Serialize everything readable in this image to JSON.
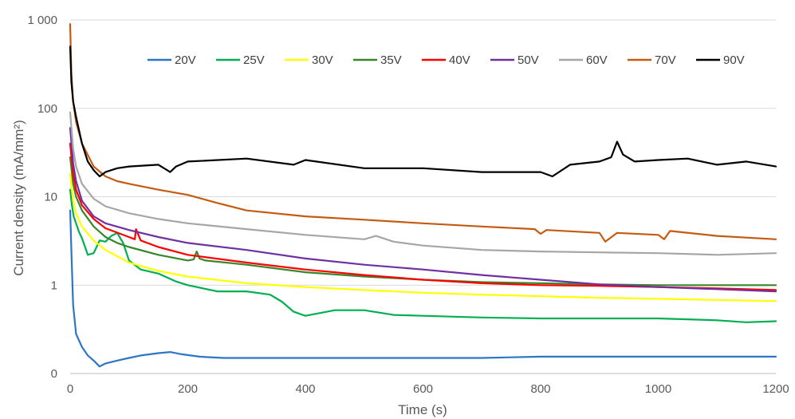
{
  "chart_data": {
    "type": "line",
    "title": "",
    "xlabel": "Time (s)",
    "ylabel": "Current density (mA/mm²)",
    "xlim": [
      0,
      1200
    ],
    "ylim": [
      0.1,
      1000
    ],
    "yscale": "log",
    "x_ticks": [
      0,
      200,
      400,
      600,
      800,
      1000,
      1200
    ],
    "x_tick_labels": [
      "0",
      "200",
      "400",
      "600",
      "800",
      "1000",
      "1200"
    ],
    "y_ticks": [
      0.1,
      1,
      10,
      100,
      1000
    ],
    "y_tick_labels": [
      "0",
      "1",
      "10",
      "100",
      "1 000"
    ],
    "grid": "horizontal",
    "legend_position": "top",
    "series": [
      {
        "name": "20V",
        "color": "#2e75c6",
        "x": [
          0,
          2,
          5,
          10,
          20,
          30,
          40,
          50,
          60,
          80,
          100,
          120,
          150,
          170,
          190,
          220,
          260,
          300,
          400,
          500,
          600,
          700,
          800,
          900,
          1000,
          1100,
          1200
        ],
        "y": [
          7,
          2.5,
          0.6,
          0.28,
          0.2,
          0.16,
          0.14,
          0.12,
          0.13,
          0.14,
          0.15,
          0.16,
          0.17,
          0.175,
          0.165,
          0.155,
          0.15,
          0.15,
          0.15,
          0.15,
          0.15,
          0.15,
          0.155,
          0.155,
          0.155,
          0.155,
          0.155
        ]
      },
      {
        "name": "25V",
        "color": "#00b050",
        "x": [
          0,
          3,
          6,
          10,
          15,
          20,
          30,
          40,
          50,
          60,
          70,
          80,
          90,
          100,
          120,
          150,
          180,
          200,
          250,
          300,
          340,
          360,
          380,
          400,
          450,
          500,
          550,
          600,
          700,
          800,
          900,
          1000,
          1100,
          1150,
          1200
        ],
        "y": [
          12,
          8,
          6,
          5,
          4,
          3.4,
          2.2,
          2.3,
          3.2,
          3.1,
          3.6,
          3.9,
          3.0,
          1.9,
          1.5,
          1.35,
          1.1,
          1.0,
          0.85,
          0.85,
          0.78,
          0.65,
          0.5,
          0.45,
          0.52,
          0.52,
          0.46,
          0.45,
          0.43,
          0.42,
          0.42,
          0.42,
          0.4,
          0.38,
          0.39
        ]
      },
      {
        "name": "30V",
        "color": "#ffff00",
        "x": [
          0,
          5,
          10,
          20,
          40,
          60,
          100,
          150,
          200,
          300,
          400,
          500,
          600,
          700,
          800,
          900,
          1000,
          1100,
          1200
        ],
        "y": [
          18,
          9,
          6.5,
          4.6,
          3.2,
          2.5,
          1.8,
          1.45,
          1.25,
          1.05,
          0.95,
          0.88,
          0.82,
          0.78,
          0.75,
          0.72,
          0.7,
          0.68,
          0.66
        ]
      },
      {
        "name": "35V",
        "color": "#38862a",
        "x": [
          0,
          5,
          10,
          20,
          40,
          60,
          80,
          100,
          150,
          200,
          210,
          215,
          220,
          230,
          300,
          400,
          500,
          600,
          700,
          800,
          900,
          1000,
          1100,
          1200
        ],
        "y": [
          28,
          14,
          10,
          7,
          4.6,
          3.5,
          3.0,
          2.7,
          2.2,
          1.9,
          1.95,
          2.4,
          2.0,
          1.9,
          1.7,
          1.4,
          1.25,
          1.15,
          1.08,
          1.05,
          1.02,
          1.0,
          1.0,
          1.0
        ]
      },
      {
        "name": "40V",
        "color": "#ff0000",
        "x": [
          0,
          5,
          10,
          20,
          40,
          60,
          100,
          110,
          112,
          120,
          150,
          200,
          300,
          400,
          500,
          600,
          700,
          800,
          900,
          1000,
          1100,
          1200
        ],
        "y": [
          40,
          18,
          12,
          8,
          5.6,
          4.4,
          3.5,
          3.3,
          4.3,
          3.2,
          2.7,
          2.2,
          1.8,
          1.5,
          1.3,
          1.15,
          1.05,
          1.0,
          0.98,
          0.95,
          0.92,
          0.88
        ]
      },
      {
        "name": "50V",
        "color": "#7030a0",
        "x": [
          0,
          5,
          10,
          20,
          40,
          60,
          100,
          150,
          200,
          300,
          400,
          500,
          600,
          700,
          800,
          900,
          1000,
          1100,
          1200
        ],
        "y": [
          60,
          24,
          15,
          9,
          6,
          5,
          4.2,
          3.5,
          3.0,
          2.5,
          2.0,
          1.7,
          1.5,
          1.3,
          1.15,
          1.02,
          0.95,
          0.9,
          0.85
        ]
      },
      {
        "name": "60V",
        "color": "#a6a6a6",
        "x": [
          0,
          5,
          10,
          20,
          40,
          60,
          100,
          150,
          200,
          300,
          400,
          500,
          520,
          550,
          600,
          700,
          800,
          900,
          1000,
          1100,
          1200
        ],
        "y": [
          90,
          35,
          22,
          14,
          9.5,
          7.8,
          6.5,
          5.6,
          5.0,
          4.3,
          3.7,
          3.3,
          3.6,
          3.1,
          2.8,
          2.5,
          2.4,
          2.35,
          2.3,
          2.2,
          2.3
        ]
      },
      {
        "name": "70V",
        "color": "#c55a11",
        "x": [
          0,
          2,
          5,
          10,
          20,
          40,
          60,
          80,
          100,
          150,
          200,
          250,
          300,
          400,
          500,
          600,
          700,
          790,
          800,
          810,
          900,
          910,
          930,
          1000,
          1010,
          1020,
          1100,
          1200
        ],
        "y": [
          900,
          250,
          120,
          70,
          40,
          22,
          17,
          15,
          14,
          12,
          10.5,
          8.5,
          7.0,
          6.0,
          5.5,
          5.0,
          4.6,
          4.3,
          3.8,
          4.2,
          3.9,
          3.1,
          3.9,
          3.7,
          3.3,
          4.1,
          3.6,
          3.3
        ]
      },
      {
        "name": "90V",
        "color": "#000000",
        "x": [
          0,
          2,
          5,
          10,
          20,
          30,
          40,
          50,
          60,
          70,
          80,
          100,
          150,
          170,
          180,
          200,
          300,
          380,
          400,
          500,
          600,
          700,
          800,
          820,
          850,
          900,
          920,
          930,
          940,
          960,
          1000,
          1050,
          1100,
          1150,
          1200
        ],
        "y": [
          500,
          200,
          120,
          80,
          40,
          25,
          20,
          17,
          19,
          20,
          21,
          22,
          23,
          19,
          22,
          25,
          27,
          23,
          26,
          21,
          21,
          19,
          19,
          17,
          23,
          25,
          28,
          42,
          30,
          25,
          26,
          27,
          23,
          25,
          22
        ]
      }
    ]
  }
}
